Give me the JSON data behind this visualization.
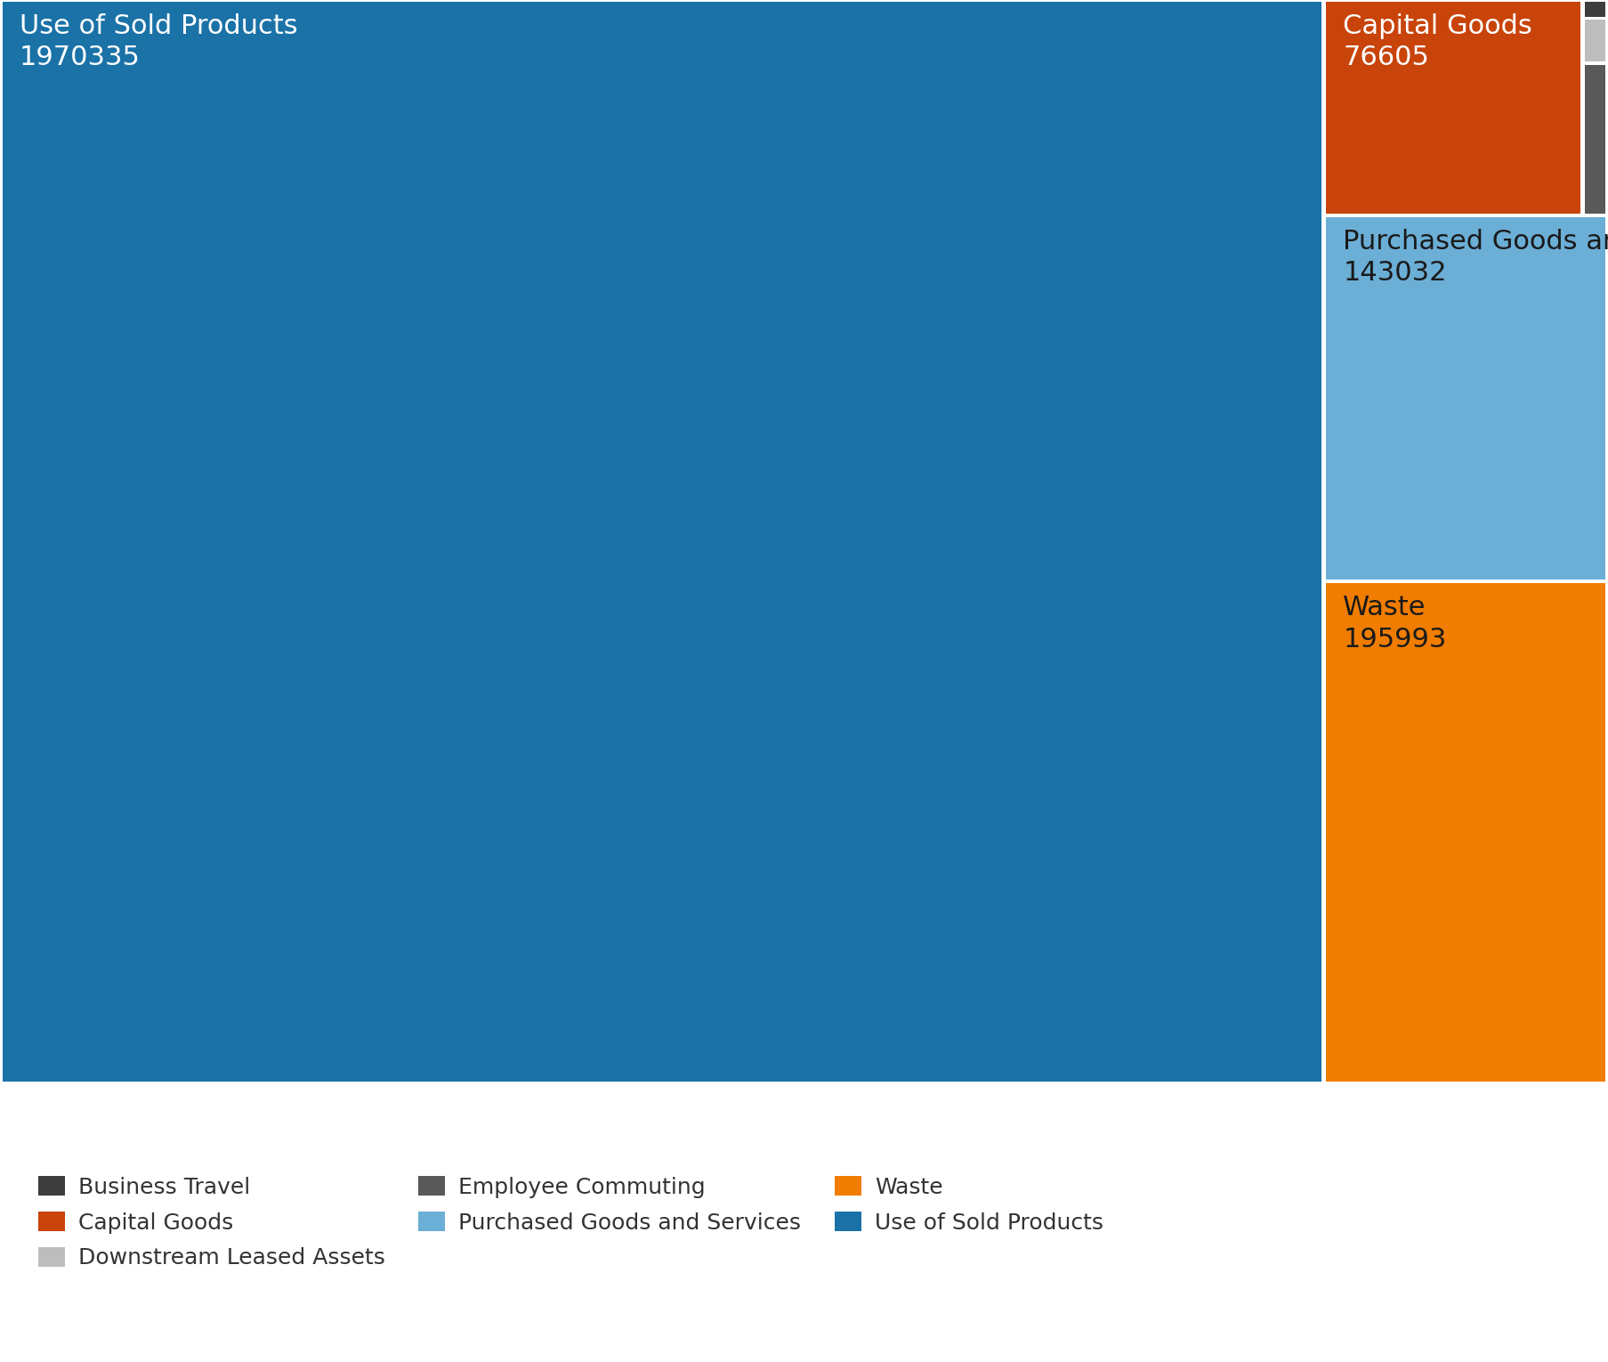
{
  "categories": [
    "Use of Sold Products",
    "Waste",
    "Purchased Goods and Services",
    "Capital Goods",
    "Employee Commuting",
    "Downstream Leased Assets",
    "Business Travel"
  ],
  "values": [
    1970335,
    195993,
    143032,
    76605,
    5349,
    1576,
    642
  ],
  "colors": [
    "#1a72a7",
    "#f07d00",
    "#6baed6",
    "#c8440a",
    "#595959",
    "#bdbdbd",
    "#3d3d3d"
  ],
  "legend_colors": [
    "#3d3d3d",
    "#c8440a",
    "#bdbdbd",
    "#595959",
    "#6baed6",
    "#f07d00",
    "#1a72a7"
  ],
  "legend_labels": [
    "Business Travel",
    "Capital Goods",
    "Downstream Leased Assets",
    "Employee Commuting",
    "Purchased Goods and Services",
    "Waste",
    "Use of Sold Products"
  ],
  "label_color_use": "white",
  "label_color_capital": "white",
  "label_color_others": "#1a1a1a",
  "background_color": "#ffffff",
  "text_fontsize": 22,
  "legend_fontsize": 18
}
